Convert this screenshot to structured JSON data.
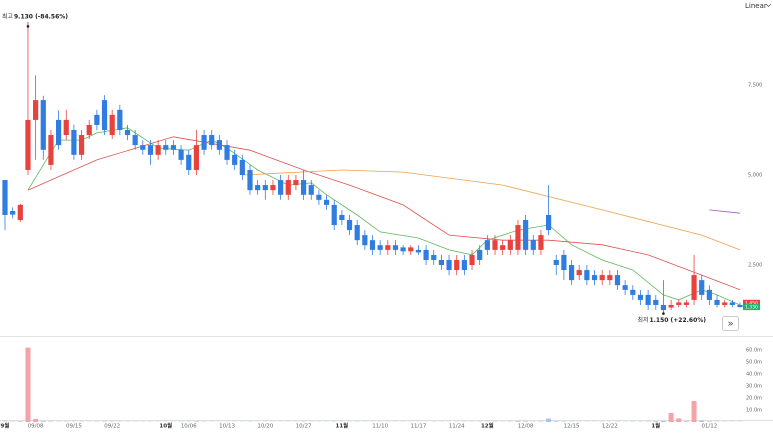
{
  "chart_data": {
    "type": "candlestick",
    "scale": "Linear",
    "categories": [
      "9월",
      null,
      null,
      null,
      "09/08",
      null,
      null,
      null,
      null,
      "09/15",
      null,
      null,
      null,
      null,
      "09/22",
      null,
      null,
      null,
      null,
      null,
      null,
      "10월",
      null,
      null,
      "10/06",
      null,
      null,
      null,
      null,
      "10/13",
      null,
      null,
      null,
      null,
      "10/20",
      null,
      null,
      null,
      null,
      "10/27",
      null,
      null,
      null,
      null,
      "11월",
      null,
      null,
      null,
      null,
      "11/10",
      null,
      null,
      null,
      null,
      "11/17",
      null,
      null,
      null,
      null,
      "11/24",
      null,
      null,
      null,
      "12월",
      null,
      null,
      null,
      null,
      "12/08",
      null,
      null,
      null,
      null,
      null,
      "12/15",
      null,
      null,
      null,
      null,
      "12/22",
      null,
      null,
      null,
      null,
      null,
      "1월",
      null,
      null,
      null,
      null,
      null,
      null,
      "01/12",
      null,
      null,
      null,
      null
    ],
    "open": [
      4860,
      4000,
      3750,
      5140,
      6530,
      7080,
      5280,
      6530,
      6110,
      6250,
      5560,
      6110,
      6670,
      7080,
      6110,
      6810,
      6250,
      6110,
      5830,
      5830,
      5560,
      5830,
      5830,
      5700,
      5560,
      5140,
      6110,
      6110,
      5970,
      5830,
      5560,
      5420,
      5140,
      4720,
      4720,
      4580,
      4860,
      4450,
      4720,
      4860,
      4720,
      4450,
      4310,
      4170,
      3890,
      3750,
      3610,
      3330,
      3190,
      3050,
      2920,
      3050,
      2990,
      2880,
      2920,
      2920,
      2780,
      2640,
      2640,
      2360,
      2640,
      2500,
      2920,
      3190,
      2920,
      2920,
      2920,
      2920,
      3750,
      3190,
      2920,
      3890,
      2640,
      2780,
      2500,
      2220,
      2360,
      2220,
      2080,
      2080,
      2220,
      1940,
      1810,
      1670,
      1670,
      1530,
      1390,
      1320,
      1390,
      1390,
      1530,
      2080,
      1810,
      1530,
      1390,
      1460,
      1390
    ],
    "high": [
      4860,
      4100,
      4200,
      9130,
      7770,
      7200,
      6250,
      6800,
      6810,
      6400,
      6250,
      6530,
      6810,
      7220,
      6810,
      6950,
      6390,
      6250,
      5970,
      5970,
      5970,
      5970,
      5970,
      5830,
      5700,
      6250,
      6250,
      6250,
      6110,
      5970,
      5700,
      5560,
      5280,
      4860,
      4860,
      4860,
      5000,
      5000,
      5000,
      5140,
      4860,
      4580,
      4450,
      4310,
      4030,
      3890,
      3750,
      3470,
      3330,
      3190,
      3190,
      3190,
      3050,
      3050,
      3050,
      3050,
      2920,
      2780,
      2780,
      2780,
      2780,
      2920,
      3050,
      3330,
      3330,
      3190,
      3330,
      3750,
      3890,
      3330,
      3470,
      4720,
      2780,
      2920,
      2640,
      2500,
      2500,
      2360,
      2360,
      2360,
      2360,
      2080,
      1940,
      1810,
      1810,
      1670,
      2080,
      1530,
      1530,
      1530,
      2780,
      2220,
      1940,
      1670,
      1530,
      1530,
      1460
    ],
    "low": [
      3470,
      3800,
      3700,
      5000,
      5420,
      5420,
      5140,
      5700,
      5970,
      5420,
      5420,
      6000,
      6250,
      6110,
      6000,
      6110,
      5970,
      5700,
      5560,
      5280,
      5420,
      5560,
      5560,
      5280,
      5000,
      5000,
      5560,
      5700,
      5560,
      5280,
      5140,
      4860,
      4450,
      4450,
      4310,
      4450,
      4310,
      4310,
      4580,
      4310,
      4310,
      4170,
      4030,
      3470,
      3610,
      3330,
      3050,
      2920,
      2780,
      2780,
      2780,
      2780,
      2780,
      2780,
      2780,
      2500,
      2500,
      2360,
      2220,
      2220,
      2220,
      2360,
      2500,
      2780,
      2780,
      2780,
      2780,
      2780,
      2780,
      2780,
      2780,
      3330,
      2220,
      2080,
      1940,
      2080,
      1940,
      1940,
      1940,
      1940,
      1810,
      1670,
      1530,
      1390,
      1250,
      1250,
      1150,
      1250,
      1320,
      1320,
      1390,
      1530,
      1390,
      1320,
      1320,
      1320,
      1320
    ],
    "close": [
      3890,
      3900,
      4170,
      6530,
      7080,
      5700,
      6110,
      5830,
      6530,
      5560,
      6110,
      6390,
      6390,
      6250,
      6670,
      6250,
      6110,
      5830,
      5700,
      5560,
      5830,
      5700,
      5700,
      5420,
      5140,
      5830,
      5700,
      5830,
      5700,
      5420,
      5280,
      5000,
      4580,
      4580,
      4580,
      4720,
      4450,
      4860,
      4860,
      4450,
      4450,
      4310,
      4170,
      3610,
      3750,
      3470,
      3190,
      3050,
      2920,
      2920,
      3050,
      2920,
      2880,
      2990,
      2850,
      2640,
      2640,
      2500,
      2360,
      2640,
      2360,
      2780,
      2640,
      2920,
      3190,
      3050,
      3190,
      3610,
      2920,
      2920,
      3330,
      3470,
      2500,
      2360,
      2080,
      2360,
      2080,
      2080,
      2220,
      2220,
      1940,
      1810,
      1670,
      1530,
      1390,
      1390,
      1250,
      1390,
      1460,
      1460,
      2220,
      1670,
      1530,
      1390,
      1460,
      1390,
      1330
    ],
    "volume": [
      0.4,
      0.3,
      0.5,
      62,
      2.5,
      0.6,
      0.4,
      0.3,
      0.3,
      0.3,
      0.3,
      0.2,
      0.3,
      0.4,
      0.3,
      0.3,
      0.2,
      0.2,
      0.2,
      0.2,
      0.2,
      0.2,
      0.2,
      0.2,
      0.3,
      0.4,
      0.3,
      0.2,
      0.2,
      0.2,
      0.2,
      0.2,
      0.3,
      0.2,
      0.2,
      0.2,
      0.2,
      0.2,
      0.2,
      0.3,
      0.2,
      0.2,
      0.2,
      0.3,
      0.2,
      0.2,
      0.3,
      0.2,
      0.2,
      0.2,
      0.2,
      0.2,
      0.2,
      0.2,
      0.2,
      0.2,
      0.2,
      0.2,
      0.2,
      0.2,
      0.2,
      0.2,
      0.3,
      0.3,
      0.3,
      0.2,
      0.3,
      0.6,
      0.5,
      0.3,
      0.4,
      2.8,
      0.6,
      0.4,
      0.3,
      0.2,
      0.2,
      0.2,
      0.2,
      0.2,
      0.3,
      0.2,
      0.3,
      0.3,
      0.4,
      0.5,
      0.8,
      7.5,
      3,
      0.6,
      17.5,
      1.2,
      0.5,
      0.3,
      0.2,
      0.2,
      0.2
    ],
    "ylim": [
      528,
      9861
    ],
    "yticks": [
      {
        "value": 2500,
        "label": "2,500"
      },
      {
        "value": 5000,
        "label": "5,000"
      },
      {
        "value": 7500,
        "label": "7,500"
      }
    ],
    "volume_ylim": [
      0,
      70
    ],
    "volume_ticks": [
      {
        "value": 10,
        "label": "10.0m"
      },
      {
        "value": 20,
        "label": "20.0m"
      },
      {
        "value": 30,
        "label": "30.0m"
      },
      {
        "value": 40,
        "label": "40.0m"
      },
      {
        "value": 50,
        "label": "50.0m"
      },
      {
        "value": 60,
        "label": "60.0m"
      }
    ],
    "up_color": "#e8423f",
    "down_color": "#2f7de1",
    "up_volume_color": "#f4a3a6",
    "down_volume_color": "#a9c4ec",
    "overlays": [
      {
        "color": "#5cb85c",
        "x": [
          3,
          5,
          7,
          10,
          12,
          16,
          20,
          24,
          27,
          29,
          33,
          37,
          40,
          42,
          46,
          49,
          54,
          58,
          61,
          63,
          67,
          71,
          74,
          78,
          82,
          86,
          88,
          91,
          93,
          96
        ],
        "values": [
          4580,
          5280,
          5970,
          5970,
          6170,
          6310,
          5750,
          5690,
          5970,
          5750,
          5140,
          4720,
          4780,
          4450,
          3890,
          3420,
          3250,
          2920,
          2780,
          3190,
          3470,
          3610,
          3060,
          2640,
          2360,
          1670,
          1530,
          1810,
          1670,
          1390
        ]
      },
      {
        "color": "#e0534f",
        "x": [
          3,
          12,
          22,
          32,
          39,
          45,
          52,
          58,
          65,
          71,
          78,
          84,
          91,
          96
        ],
        "values": [
          4580,
          5420,
          6060,
          5690,
          5140,
          4720,
          4170,
          3330,
          3190,
          3190,
          3060,
          2780,
          2220,
          1810
        ]
      },
      {
        "color": "#f0a04b",
        "x": [
          31,
          44,
          52,
          65,
          78,
          91,
          96
        ],
        "values": [
          5000,
          5140,
          5080,
          4720,
          4030,
          3330,
          2920
        ]
      },
      {
        "color": "#9b59b6",
        "x": [
          92,
          96
        ],
        "values": [
          4030,
          3940
        ]
      }
    ],
    "annotations": [
      {
        "label": "최고",
        "text": "9.130 (-84.56%)",
        "x": 3,
        "value": 9130
      },
      {
        "label": "최저",
        "text": "1.150 (+22.60%)",
        "x": 86,
        "value": 1150
      }
    ],
    "price_labels": [
      {
        "value": 1450,
        "label": "1,450",
        "color": "#e8423f"
      },
      {
        "value": 1330,
        "label": "1,330",
        "color": "#1cb36b"
      }
    ]
  }
}
